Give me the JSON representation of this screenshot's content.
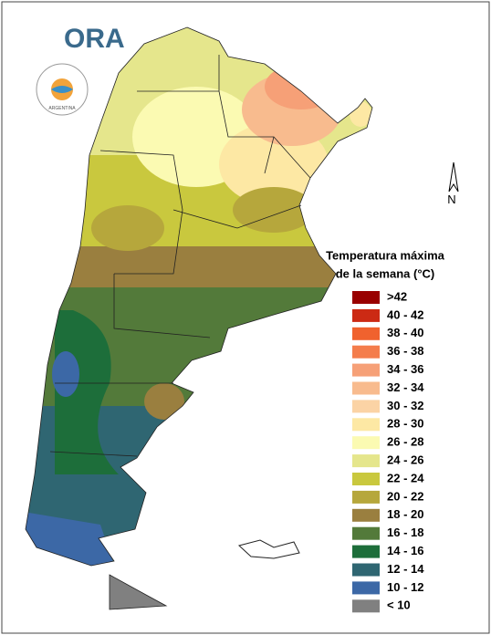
{
  "logo": {
    "text": "ORA",
    "seal": "ARGENTINA"
  },
  "north": "N",
  "legend": {
    "title": [
      "Temperatura máxima",
      "de la semana (°C)"
    ],
    "items": [
      {
        "label": ">42",
        "color": "#990000"
      },
      {
        "label": "40 - 42",
        "color": "#cc2a14"
      },
      {
        "label": "38 - 40",
        "color": "#f0622e"
      },
      {
        "label": "36 - 38",
        "color": "#f47d4c"
      },
      {
        "label": "34 - 36",
        "color": "#f6a077"
      },
      {
        "label": "32 - 34",
        "color": "#f8bb8e"
      },
      {
        "label": "30 - 32",
        "color": "#fbd3a5"
      },
      {
        "label": "28 - 30",
        "color": "#fde8a4"
      },
      {
        "label": "26 - 28",
        "color": "#fbfab2"
      },
      {
        "label": "24 - 26",
        "color": "#e5e68c"
      },
      {
        "label": "22 - 24",
        "color": "#c9c83e"
      },
      {
        "label": "20 - 22",
        "color": "#b6a73c"
      },
      {
        "label": "18 - 20",
        "color": "#9a7f3f"
      },
      {
        "label": "16 - 18",
        "color": "#537a3a"
      },
      {
        "label": "14 - 16",
        "color": "#1d6e3a"
      },
      {
        "label": "12 - 14",
        "color": "#2f6672"
      },
      {
        "label": "10 - 12",
        "color": "#3c68a6"
      },
      {
        "label": "< 10",
        "color": "#808080"
      }
    ]
  }
}
